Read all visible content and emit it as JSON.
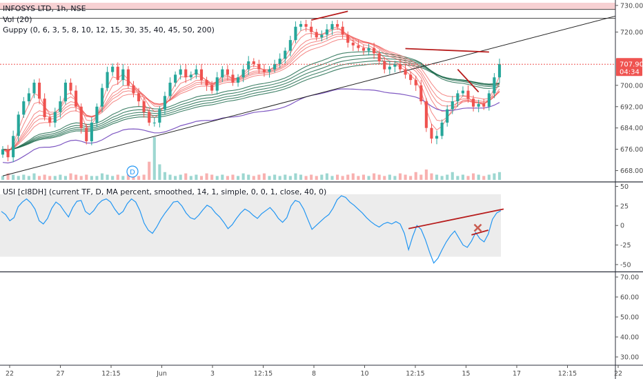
{
  "legend": {
    "title": "INFOSYS LTD, 1h, NSE",
    "vol": "Vol (20)",
    "guppy": "Guppy (0, 6, 3, 5, 8, 10, 12, 15, 30, 35, 40, 45, 50, 200)",
    "usi": "USI [cI8DH] (current TF, D, MA percent, smoothed, 14, 1, simple, 0, 0, 1, close, 40, 0)"
  },
  "price_badge": {
    "price": "707.90",
    "countdown": "04:34",
    "color": "#ef5350"
  },
  "event_marker": {
    "label": "D"
  },
  "colors": {
    "up": "#26a69a",
    "down": "#ef5350",
    "ema_fast": "#ef5350",
    "ema_slow": "#1f6b4d",
    "ema200": "#7e57c2",
    "usi_line": "#2196f3",
    "trendline": "#b71c1c",
    "resistance_band": "#f5c6c8"
  },
  "chart_data": [
    {
      "type": "candlestick",
      "symbol": "INFOSYS LTD",
      "timeframe": "1h",
      "exchange": "NSE",
      "x_ticks": [
        "22",
        "27",
        "12:15",
        "Jun",
        "3",
        "12:15",
        "8",
        "10",
        "12:15",
        "15",
        "17",
        "12:15",
        "22"
      ],
      "y_ticks": [
        668,
        676,
        684,
        692,
        700,
        710,
        720,
        730
      ],
      "ylim": [
        664,
        731
      ],
      "last_price": 707.9,
      "closes": [
        676,
        673,
        681,
        689,
        694,
        697,
        701,
        695,
        688,
        686,
        690,
        694,
        701,
        698,
        692,
        684,
        679,
        686,
        692,
        699,
        705,
        707,
        702,
        706,
        700,
        697,
        694,
        690,
        686,
        686,
        691,
        696,
        701,
        704,
        706,
        703,
        704,
        706,
        702,
        700,
        698,
        703,
        706,
        704,
        701,
        703,
        706,
        709,
        708,
        706,
        705,
        706,
        708,
        710,
        713,
        717,
        722,
        723,
        722,
        720,
        718,
        719,
        721,
        723,
        722,
        719,
        716,
        715,
        714,
        713,
        714,
        712,
        709,
        706,
        707,
        708,
        706,
        704,
        702,
        700,
        694,
        684,
        680,
        681,
        686,
        691,
        694,
        697,
        698,
        695,
        692,
        693,
        692,
        697,
        703,
        708
      ],
      "volume_max": 33,
      "volume": [
        3,
        5,
        4,
        3,
        4,
        3,
        5,
        3,
        4,
        3,
        3,
        4,
        3,
        5,
        4,
        3,
        4,
        3,
        3,
        5,
        4,
        3,
        4,
        3,
        4,
        5,
        3,
        4,
        14,
        33,
        12,
        6,
        4,
        3,
        4,
        5,
        3,
        4,
        3,
        5,
        4,
        3,
        4,
        3,
        4,
        3,
        5,
        4,
        3,
        4,
        5,
        3,
        4,
        3,
        4,
        3,
        5,
        4,
        3,
        4,
        3,
        4,
        5,
        3,
        4,
        3,
        4,
        5,
        3,
        4,
        3,
        5,
        4,
        3,
        4,
        3,
        5,
        4,
        3,
        6,
        4,
        8,
        5,
        4,
        3,
        4,
        6,
        3,
        4,
        3,
        5,
        4,
        3,
        4,
        5,
        6
      ],
      "ema_fast_periods": [
        3,
        5,
        8,
        10,
        12,
        15
      ],
      "ema_slow_periods": [
        30,
        35,
        40,
        45,
        50
      ],
      "ema_long_period": 200,
      "resistance_band": [
        728.5,
        731
      ],
      "horizontal_level": 725.2,
      "trendlines": [
        {
          "name": "rising-support",
          "from": [
            0,
            666
          ],
          "to": [
            103,
            726
          ]
        },
        {
          "name": "top-connector",
          "from": [
            59,
            724.5
          ],
          "to": [
            66,
            727.8
          ]
        },
        {
          "name": "lower-highs",
          "from": [
            77,
            713.8
          ],
          "to": [
            93,
            712.5
          ]
        },
        {
          "name": "falling-short",
          "from": [
            87,
            706
          ],
          "to": [
            91,
            697.5
          ]
        }
      ]
    },
    {
      "type": "line",
      "name": "USI",
      "y_ticks": [
        50,
        25,
        0,
        -25,
        -50
      ],
      "ylim": [
        -58,
        54
      ],
      "band": [
        -40,
        40
      ],
      "values": [
        18,
        14,
        6,
        10,
        24,
        30,
        34,
        29,
        21,
        6,
        2,
        9,
        22,
        30,
        26,
        18,
        11,
        23,
        31,
        32,
        18,
        14,
        19,
        27,
        32,
        34,
        30,
        21,
        14,
        18,
        28,
        34,
        30,
        19,
        3,
        -6,
        -10,
        -2,
        8,
        16,
        23,
        30,
        31,
        25,
        16,
        10,
        8,
        13,
        20,
        26,
        23,
        16,
        11,
        4,
        -4,
        1,
        9,
        16,
        21,
        18,
        13,
        9,
        15,
        19,
        23,
        17,
        9,
        4,
        10,
        25,
        32,
        30,
        21,
        8,
        -5,
        0,
        5,
        10,
        14,
        22,
        33,
        38,
        36,
        30,
        26,
        21,
        16,
        10,
        5,
        1,
        -2,
        2,
        4,
        2,
        5,
        2,
        -10,
        -31,
        -14,
        0,
        -5,
        -18,
        -34,
        -48,
        -42,
        -31,
        -21,
        -13,
        -7,
        -16,
        -25,
        -28,
        -20,
        -9,
        -17,
        -21,
        -11,
        8,
        16,
        19
      ],
      "trendlines": [
        {
          "name": "usi-rising-highs",
          "from": [
            97,
            -4
          ],
          "to": [
            122,
            21
          ]
        },
        {
          "name": "usi-short-rise",
          "from": [
            112,
            -12
          ],
          "to": [
            116,
            -6
          ]
        }
      ],
      "cross_marker": {
        "x": 113.5,
        "y": -3
      }
    },
    {
      "type": "line",
      "name": "empty-pane",
      "y_ticks": [
        "70.00",
        "60.00",
        "50.00",
        "40.00",
        "30.00"
      ],
      "values": []
    }
  ]
}
